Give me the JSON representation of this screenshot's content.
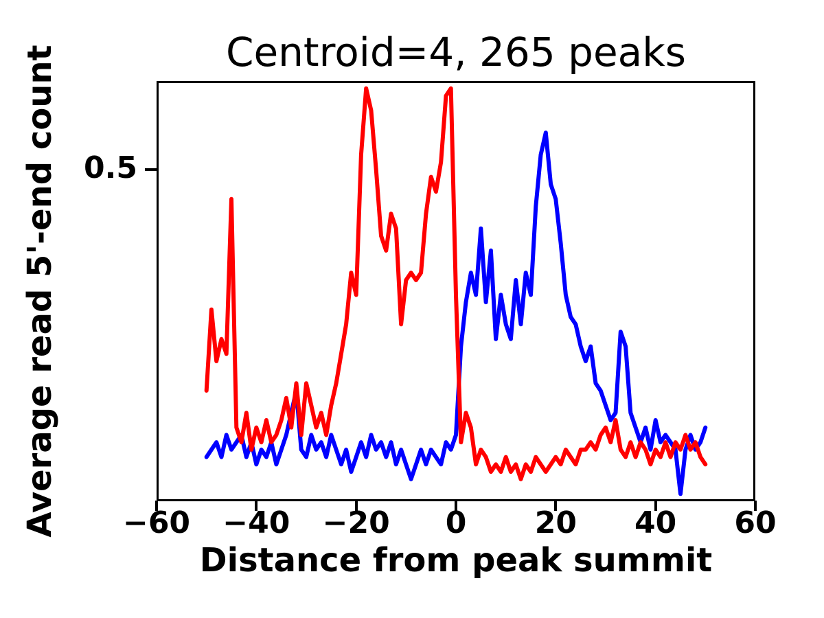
{
  "figure": {
    "background": "#ffffff",
    "frame_color": "#000000"
  },
  "chart_data": {
    "type": "line",
    "title": "Centroid=4, 265 peaks",
    "xlabel": "Distance from peak summit",
    "ylabel": "Average read 5'-end count",
    "xlim": [
      -60,
      60
    ],
    "ylim": [
      0.05,
      0.62
    ],
    "grid": false,
    "legend": "none",
    "xticks": {
      "values": [
        -60,
        -40,
        -20,
        0,
        20,
        40,
        60
      ],
      "labels": [
        "−60",
        "−40",
        "−20",
        "0",
        "20",
        "40",
        "60"
      ]
    },
    "yticks": {
      "values": [
        0.5
      ],
      "labels": [
        "0.5"
      ]
    },
    "x": [
      -50,
      -49,
      -48,
      -47,
      -46,
      -45,
      -44,
      -43,
      -42,
      -41,
      -40,
      -39,
      -38,
      -37,
      -36,
      -35,
      -34,
      -33,
      -32,
      -31,
      -30,
      -29,
      -28,
      -27,
      -26,
      -25,
      -24,
      -23,
      -22,
      -21,
      -20,
      -19,
      -18,
      -17,
      -16,
      -15,
      -14,
      -13,
      -12,
      -11,
      -10,
      -9,
      -8,
      -7,
      -6,
      -5,
      -4,
      -3,
      -2,
      -1,
      0,
      1,
      2,
      3,
      4,
      5,
      6,
      7,
      8,
      9,
      10,
      11,
      12,
      13,
      14,
      15,
      16,
      17,
      18,
      19,
      20,
      21,
      22,
      23,
      24,
      25,
      26,
      27,
      28,
      29,
      30,
      31,
      32,
      33,
      34,
      35,
      36,
      37,
      38,
      39,
      40,
      41,
      42,
      43,
      44,
      45,
      46,
      47,
      48,
      49,
      50
    ],
    "series": [
      {
        "name": "blue-series",
        "color": "#0000ff",
        "values": [
          0.11,
          0.12,
          0.13,
          0.11,
          0.14,
          0.12,
          0.13,
          0.14,
          0.11,
          0.13,
          0.1,
          0.12,
          0.11,
          0.13,
          0.1,
          0.12,
          0.14,
          0.17,
          0.2,
          0.12,
          0.11,
          0.14,
          0.12,
          0.13,
          0.11,
          0.14,
          0.12,
          0.1,
          0.12,
          0.09,
          0.11,
          0.13,
          0.11,
          0.14,
          0.12,
          0.13,
          0.11,
          0.13,
          0.1,
          0.12,
          0.1,
          0.08,
          0.1,
          0.12,
          0.1,
          0.12,
          0.11,
          0.1,
          0.13,
          0.12,
          0.14,
          0.26,
          0.32,
          0.36,
          0.33,
          0.42,
          0.32,
          0.39,
          0.27,
          0.33,
          0.29,
          0.27,
          0.35,
          0.29,
          0.36,
          0.33,
          0.45,
          0.52,
          0.55,
          0.48,
          0.46,
          0.4,
          0.33,
          0.3,
          0.29,
          0.26,
          0.24,
          0.26,
          0.21,
          0.2,
          0.18,
          0.16,
          0.17,
          0.28,
          0.26,
          0.17,
          0.15,
          0.13,
          0.15,
          0.12,
          0.16,
          0.13,
          0.14,
          0.13,
          0.12,
          0.06,
          0.12,
          0.14,
          0.12,
          0.13,
          0.15
        ]
      },
      {
        "name": "red-series",
        "color": "#ff0000",
        "values": [
          0.2,
          0.31,
          0.24,
          0.27,
          0.25,
          0.46,
          0.15,
          0.13,
          0.17,
          0.12,
          0.15,
          0.13,
          0.16,
          0.13,
          0.14,
          0.16,
          0.19,
          0.15,
          0.21,
          0.14,
          0.21,
          0.18,
          0.15,
          0.17,
          0.14,
          0.18,
          0.21,
          0.25,
          0.29,
          0.36,
          0.33,
          0.52,
          0.61,
          0.58,
          0.5,
          0.41,
          0.39,
          0.44,
          0.42,
          0.29,
          0.35,
          0.36,
          0.35,
          0.36,
          0.44,
          0.49,
          0.47,
          0.51,
          0.6,
          0.61,
          0.33,
          0.13,
          0.17,
          0.15,
          0.1,
          0.12,
          0.11,
          0.09,
          0.1,
          0.09,
          0.11,
          0.09,
          0.1,
          0.08,
          0.1,
          0.09,
          0.11,
          0.1,
          0.09,
          0.1,
          0.11,
          0.1,
          0.12,
          0.11,
          0.1,
          0.12,
          0.12,
          0.13,
          0.12,
          0.14,
          0.15,
          0.13,
          0.16,
          0.12,
          0.11,
          0.13,
          0.11,
          0.13,
          0.12,
          0.1,
          0.12,
          0.11,
          0.13,
          0.11,
          0.13,
          0.12,
          0.14,
          0.12,
          0.13,
          0.11,
          0.1
        ]
      }
    ]
  }
}
